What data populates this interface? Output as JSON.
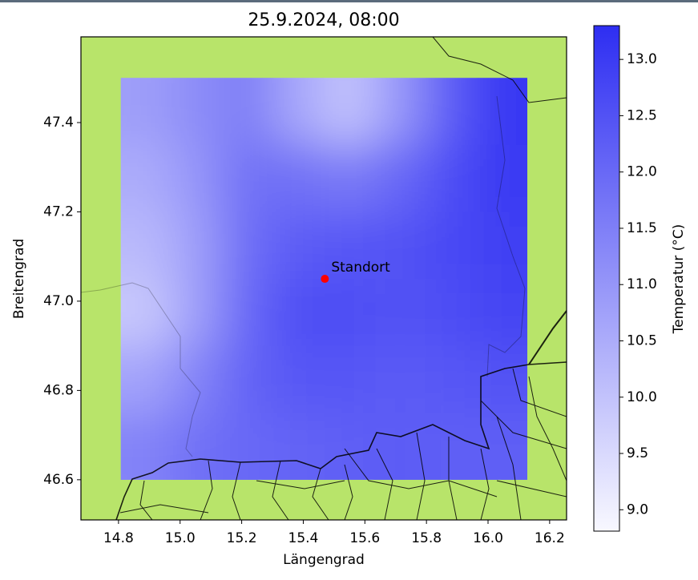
{
  "chart_data": {
    "type": "heatmap",
    "title": "25.9.2024, 08:00",
    "xlabel": "Längengrad",
    "ylabel": "Breitengrad",
    "xlim": [
      14.678,
      16.255
    ],
    "ylim": [
      46.51,
      47.592
    ],
    "xticks": [
      14.8,
      {
        "value": 15.0,
        "label": "15.0"
      },
      15.2,
      15.4,
      15.6,
      15.8,
      {
        "value": 16.0,
        "label": "16.0"
      },
      16.2
    ],
    "yticks": [
      46.6,
      46.8,
      {
        "value": 47.0,
        "label": "47.0"
      },
      47.2,
      47.4
    ],
    "background": "#b8e46a",
    "x": [
      14.89,
      15.055,
      15.22,
      15.385,
      15.55,
      15.715,
      15.88,
      16.045
    ],
    "y": [
      47.425,
      47.275,
      47.125,
      46.975,
      46.825,
      46.675
    ],
    "z": [
      [
        10.8,
        11.2,
        11.5,
        10.6,
        10.0,
        11.0,
        12.3,
        13.1
      ],
      [
        10.5,
        11.0,
        11.8,
        11.8,
        11.6,
        12.0,
        12.6,
        13.0
      ],
      [
        10.2,
        10.8,
        11.9,
        12.3,
        12.4,
        12.5,
        12.7,
        12.9
      ],
      [
        9.9,
        10.8,
        12.0,
        12.6,
        12.6,
        12.5,
        12.6,
        12.8
      ],
      [
        10.7,
        11.4,
        12.1,
        12.4,
        12.4,
        12.3,
        12.4,
        12.5
      ],
      [
        11.4,
        11.8,
        12.0,
        12.1,
        12.2,
        12.3,
        12.2,
        12.2
      ]
    ],
    "cmap": [
      "#f8f8ff",
      "#2e2ef2"
    ],
    "clim": [
      8.81,
      13.3
    ],
    "colorbar_label": "Temperatur (°C)",
    "colorbar_ticks": [
      {
        "value": 9.0,
        "label": "9.0"
      },
      9.5,
      {
        "value": 10.0,
        "label": "10.0"
      },
      10.5,
      {
        "value": 11.0,
        "label": "11.0"
      },
      11.5,
      {
        "value": 12.0,
        "label": "12.0"
      },
      12.5,
      {
        "value": 13.0,
        "label": "13.0"
      }
    ],
    "marker": {
      "label": "Standort",
      "x": 15.47,
      "y": 47.05,
      "color": "#ff0000"
    }
  }
}
